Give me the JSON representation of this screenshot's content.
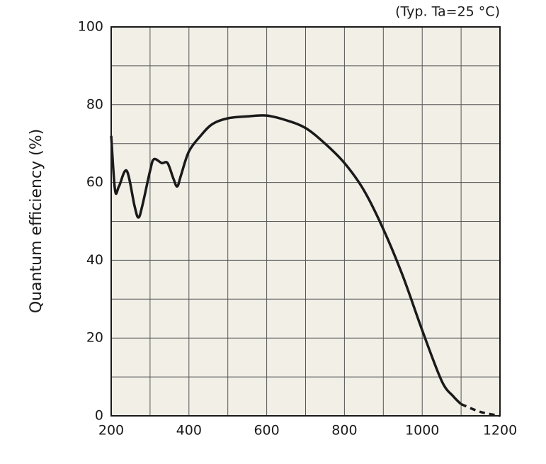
{
  "chart_data": {
    "type": "line",
    "annotation": "(Typ. Ta=25 °C)",
    "y_label": "Quantum efficiency (%)",
    "xlim": [
      200,
      1200
    ],
    "xticks": [
      200,
      400,
      600,
      800,
      1000,
      1200
    ],
    "ylim": [
      0,
      100
    ],
    "yticks": [
      0,
      20,
      40,
      60,
      80,
      100
    ],
    "x_minor_grid": [
      300,
      500,
      700,
      900,
      1100
    ],
    "y_minor_grid": [
      10,
      30,
      50,
      70,
      90
    ],
    "grid": true,
    "series": [
      {
        "color": "#1a1a1a",
        "dashed": false,
        "x": [
          200,
          210,
          220,
          240,
          260,
          270,
          280,
          300,
          310,
          330,
          345,
          360,
          370,
          380,
          400,
          430,
          460,
          500,
          550,
          600,
          650,
          700,
          750,
          800,
          850,
          900,
          950,
          1000,
          1050,
          1080,
          1100
        ],
        "values": [
          72,
          58,
          59,
          63,
          54,
          51,
          54,
          63,
          66,
          65,
          65,
          61,
          59,
          62,
          68,
          72,
          75,
          76.5,
          77,
          77.2,
          76,
          74,
          70,
          65,
          58,
          48,
          36,
          22,
          9,
          5,
          3
        ]
      },
      {
        "color": "#1a1a1a",
        "dashed": true,
        "x": [
          1100,
          1150,
          1200
        ],
        "values": [
          3,
          1,
          0
        ]
      }
    ]
  }
}
